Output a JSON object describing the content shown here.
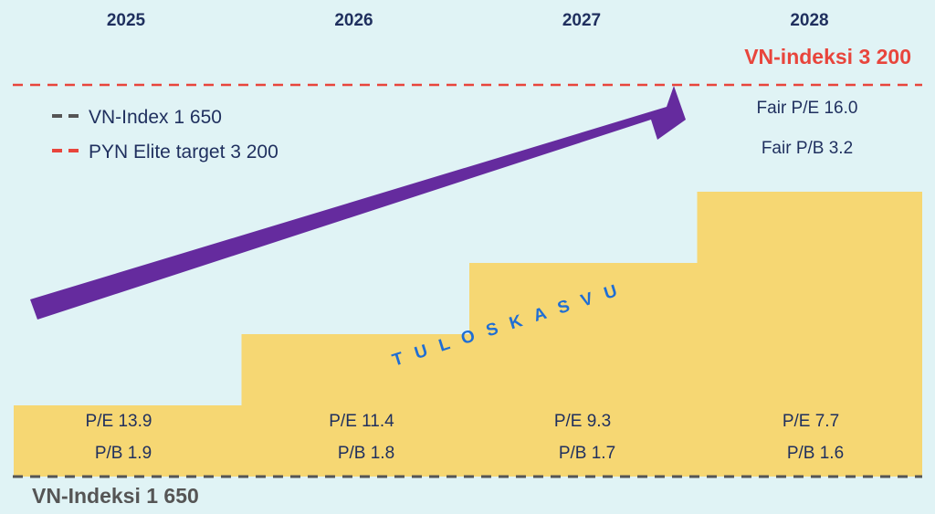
{
  "colors": {
    "background": "#e0f3f5",
    "bars": "#f6d773",
    "arrow": "#652b9e",
    "target_line": "#e8453c",
    "base_line": "#555555",
    "text": "#1f2f5e",
    "growth_text": "#1f6ed4"
  },
  "chart_data": {
    "type": "bar",
    "categories": [
      "2025",
      "2026",
      "2027",
      "2028"
    ],
    "steps": [
      1,
      2,
      3,
      4
    ],
    "pe": [
      "P/E 13.9",
      "P/E 11.4",
      "P/E 9.3",
      "P/E 7.7"
    ],
    "pb": [
      "P/B 1.9",
      "P/B 1.8",
      "P/B 1.7",
      "P/B 1.6"
    ],
    "fair": [
      "Fair P/E 16.0",
      "Fair P/B 3.2"
    ],
    "target_label": "VN-indeksi 3 200",
    "base_label": "VN-Indeksi 1 650",
    "growth_label": "TULOSKASVU",
    "legend": [
      {
        "label": "VN-Index 1 650",
        "color": "#555555"
      },
      {
        "label": "PYN Elite target 3 200",
        "color": "#e8453c"
      }
    ]
  }
}
